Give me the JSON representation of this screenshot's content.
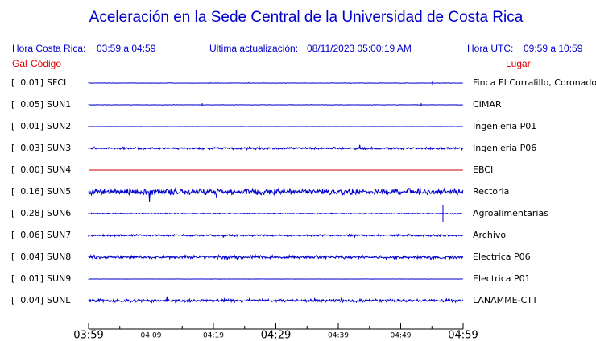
{
  "header": {
    "title": "Aceleración en la Sede Central de la Universidad de Costa Rica",
    "local_label": "Hora Costa Rica:",
    "local_range": "03:59 a 04:59",
    "update_label": "Ultima actualización:",
    "update_value": "08/11/2023 05:00:19 AM",
    "utc_label": "Hora UTC:",
    "utc_range": "09:59 a 10:59"
  },
  "columns": {
    "gal": "Gal",
    "code": "Código",
    "place": "Lugar"
  },
  "rows": [
    {
      "gal": "[  0.01]",
      "code": "SFCL",
      "place": "Finca El Corralillo, Coronado",
      "color": "#0000cc"
    },
    {
      "gal": "[  0.05]",
      "code": "SUN1",
      "place": "CIMAR",
      "color": "#0000cc"
    },
    {
      "gal": "[  0.01]",
      "code": "SUN2",
      "place": "Ingenieria P01",
      "color": "#0000cc"
    },
    {
      "gal": "[  0.03]",
      "code": "SUN3",
      "place": "Ingenieria P06",
      "color": "#0000cc"
    },
    {
      "gal": "[  0.00]",
      "code": "SUN4",
      "place": "EBCI",
      "color": "#cc0000"
    },
    {
      "gal": "[  0.16]",
      "code": "SUN5",
      "place": "Rectoria",
      "color": "#0000cc"
    },
    {
      "gal": "[  0.28]",
      "code": "SUN6",
      "place": "Agroalimentarias",
      "color": "#0000cc"
    },
    {
      "gal": "[  0.06]",
      "code": "SUN7",
      "place": "Archivo",
      "color": "#0000cc"
    },
    {
      "gal": "[  0.04]",
      "code": "SUN8",
      "place": "Electrica P06",
      "color": "#0000cc"
    },
    {
      "gal": "[  0.01]",
      "code": "SUN9",
      "place": "Electrica P01",
      "color": "#0000cc"
    },
    {
      "gal": "[  0.04]",
      "code": "SUNL",
      "place": "LANAMME-CTT",
      "color": "#0000cc"
    }
  ],
  "time_axis": [
    "03:59",
    "04:09",
    "04:19",
    "04:29",
    "04:39",
    "04:49",
    "04:59"
  ]
}
